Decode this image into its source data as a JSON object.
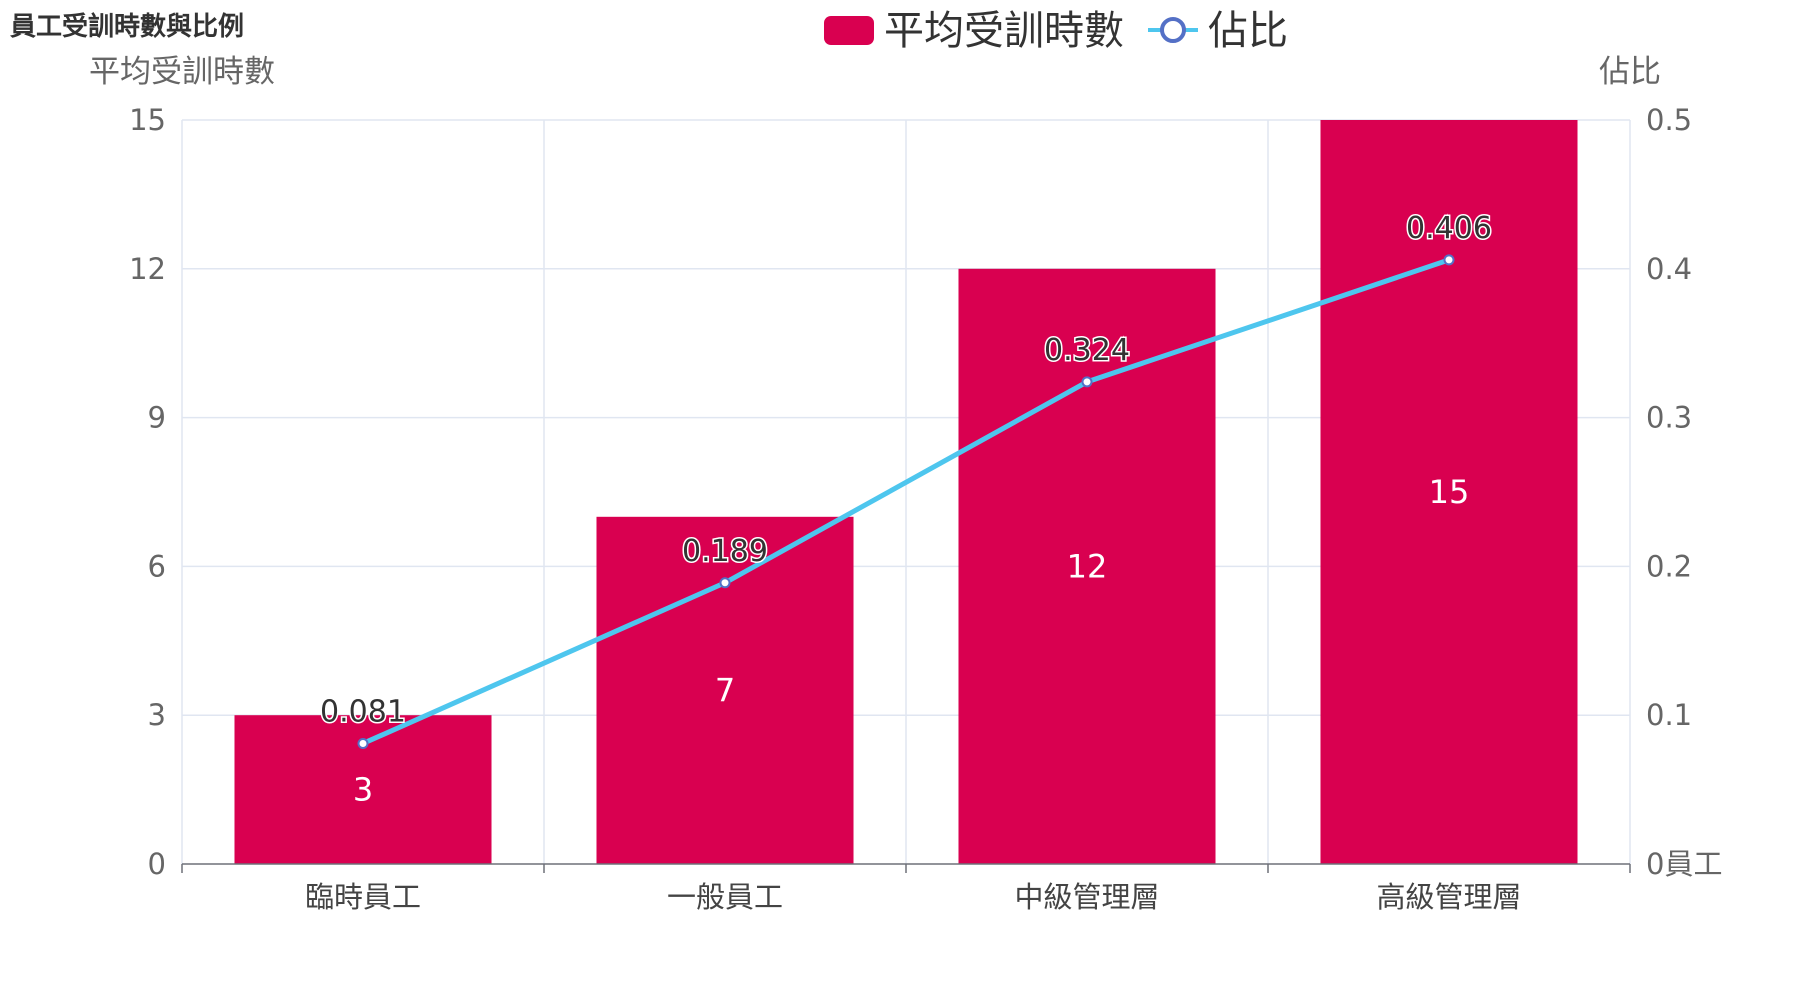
{
  "chart_data": {
    "type": "bar",
    "title": "員工受訓時數與比例",
    "categories": [
      "臨時員工",
      "一般員工",
      "中級管理層",
      "高級管理層"
    ],
    "series": [
      {
        "name": "平均受訓時數",
        "type": "bar",
        "y_axis": "left",
        "values": [
          3,
          7,
          12,
          15
        ],
        "color": "#d90050"
      },
      {
        "name": "佔比",
        "type": "line",
        "y_axis": "right",
        "values": [
          0.081,
          0.189,
          0.324,
          0.406
        ],
        "color": "#4ec6ee",
        "marker_color": "#5470c6"
      }
    ],
    "y_left": {
      "name": "平均受訓時數",
      "min": 0,
      "max": 15,
      "ticks": [
        "0",
        "3",
        "6",
        "9",
        "12",
        "15"
      ]
    },
    "y_right": {
      "name": "佔比",
      "min": 0,
      "max": 0.5,
      "ticks": [
        "0員工",
        "0.1",
        "0.2",
        "0.3",
        "0.4",
        "0.5"
      ]
    },
    "legend_position": "top-center",
    "grid": true
  }
}
